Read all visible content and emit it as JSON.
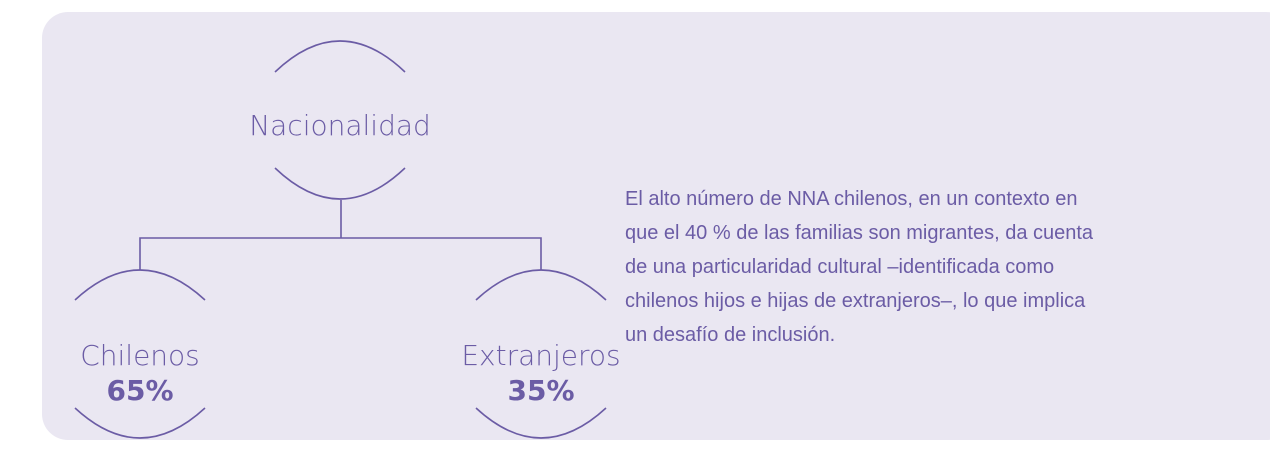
{
  "root": {
    "label": "Nacionalidad"
  },
  "nodes": [
    {
      "label": "Chilenos",
      "value": "65%"
    },
    {
      "label": "Extranjeros",
      "value": "35%"
    }
  ],
  "description": {
    "lines": [
      "El alto número de NNA chilenos, en un contexto en",
      "que el 40 % de las familias son migrantes, da cuenta",
      "de una particularidad cultural –identificada como",
      "chilenos hijos e hijas de extranjeros–, lo que implica",
      "un desafío de inclusión."
    ]
  }
}
